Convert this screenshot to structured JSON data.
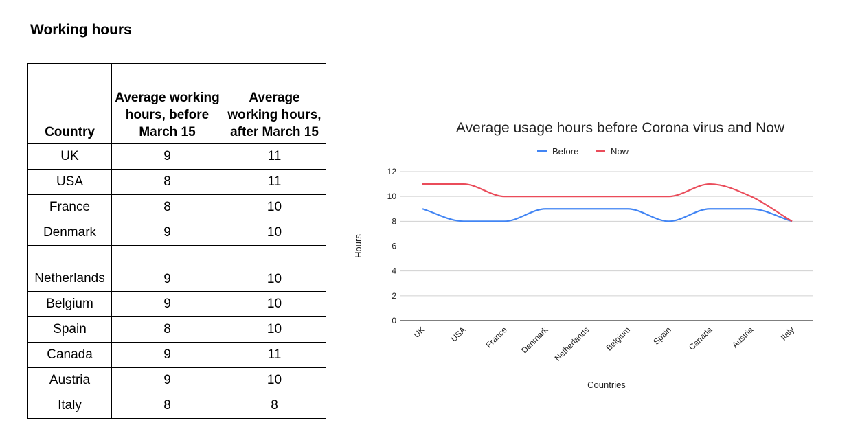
{
  "page_title": "Working hours",
  "table": {
    "headers": [
      "Country",
      "Average working hours, before March 15",
      "Average working hours, after March 15"
    ],
    "rows": [
      {
        "country": "UK",
        "before": "9",
        "after": "11"
      },
      {
        "country": "USA",
        "before": "8",
        "after": "11"
      },
      {
        "country": "France",
        "before": "8",
        "after": "10"
      },
      {
        "country": "Denmark",
        "before": "9",
        "after": "10"
      },
      {
        "country": "Netherlands",
        "before": "9",
        "after": "10"
      },
      {
        "country": "Belgium",
        "before": "9",
        "after": "10"
      },
      {
        "country": "Spain",
        "before": "8",
        "after": "10"
      },
      {
        "country": "Canada",
        "before": "9",
        "after": "11"
      },
      {
        "country": "Austria",
        "before": "9",
        "after": "10"
      },
      {
        "country": "Italy",
        "before": "8",
        "after": "8"
      }
    ]
  },
  "chart_data": {
    "type": "line",
    "title": "Average usage hours before Corona virus and Now",
    "xlabel": "Countries",
    "ylabel": "Hours",
    "categories": [
      "UK",
      "USA",
      "France",
      "Denmark",
      "Netherlands",
      "Belgium",
      "Spain",
      "Canada",
      "Austria",
      "Italy"
    ],
    "series": [
      {
        "name": "Before",
        "color": "#4285f4",
        "values": [
          9,
          8,
          8,
          9,
          9,
          9,
          8,
          9,
          9,
          8
        ]
      },
      {
        "name": "Now",
        "color": "#ea4c5a",
        "values": [
          11,
          11,
          10,
          10,
          10,
          10,
          10,
          11,
          10,
          8
        ]
      }
    ],
    "ylim": [
      0,
      12
    ],
    "yticks": [
      0,
      2,
      4,
      6,
      8,
      10,
      12
    ],
    "grid": true,
    "smooth": true,
    "legend_position": "top"
  }
}
